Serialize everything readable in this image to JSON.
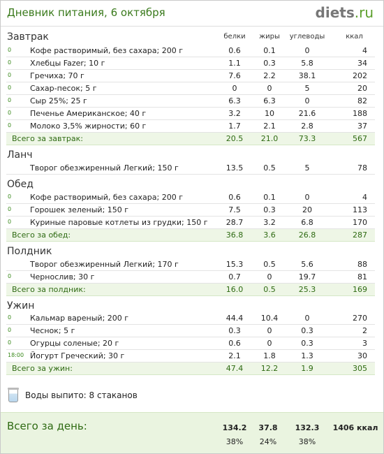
{
  "header": {
    "title": "Дневник питания, 6 октября",
    "logo_main": "diets",
    "logo_tld": ".ru"
  },
  "columns": {
    "protein": "белки",
    "fat": "жиры",
    "carbs": "углеводы",
    "kcal": "ккал"
  },
  "sections": {
    "breakfast": {
      "title": "Завтрак",
      "items": [
        {
          "time": "0",
          "name": "Кофе растворимый, без сахара; 200 г",
          "protein": "0.6",
          "fat": "0.1",
          "carbs": "0",
          "kcal": "4"
        },
        {
          "time": "0",
          "name": "Хлебцы Fazer; 10 г",
          "protein": "1.1",
          "fat": "0.3",
          "carbs": "5.8",
          "kcal": "34"
        },
        {
          "time": "0",
          "name": "Гречиха; 70 г",
          "protein": "7.6",
          "fat": "2.2",
          "carbs": "38.1",
          "kcal": "202"
        },
        {
          "time": "0",
          "name": "Сахар-песок; 5 г",
          "protein": "0",
          "fat": "0",
          "carbs": "5",
          "kcal": "20"
        },
        {
          "time": "0",
          "name": "Сыр 25%; 25 г",
          "protein": "6.3",
          "fat": "6.3",
          "carbs": "0",
          "kcal": "82"
        },
        {
          "time": "0",
          "name": "Печенье Американское; 40 г",
          "protein": "3.2",
          "fat": "10",
          "carbs": "21.6",
          "kcal": "188"
        },
        {
          "time": "0",
          "name": "Молоко 3,5% жирности; 60 г",
          "protein": "1.7",
          "fat": "2.1",
          "carbs": "2.8",
          "kcal": "37"
        }
      ],
      "total": {
        "label": "Всего за завтрак:",
        "protein": "20.5",
        "fat": "21.0",
        "carbs": "73.3",
        "kcal": "567"
      }
    },
    "lunch": {
      "title": "Ланч",
      "items": [
        {
          "time": "",
          "name": "Творог обезжиренный Легкий; 150 г",
          "protein": "13.5",
          "fat": "0.5",
          "carbs": "5",
          "kcal": "78"
        }
      ]
    },
    "dinner": {
      "title": "Обед",
      "items": [
        {
          "time": "0",
          "name": "Кофе растворимый, без сахара; 200 г",
          "protein": "0.6",
          "fat": "0.1",
          "carbs": "0",
          "kcal": "4"
        },
        {
          "time": "0",
          "name": "Горошек зеленый; 150 г",
          "protein": "7.5",
          "fat": "0.3",
          "carbs": "20",
          "kcal": "113"
        },
        {
          "time": "0",
          "name": "Куриные паровые котлеты из грудки; 150 г",
          "protein": "28.7",
          "fat": "3.2",
          "carbs": "6.8",
          "kcal": "170"
        }
      ],
      "total": {
        "label": "Всего за обед:",
        "protein": "36.8",
        "fat": "3.6",
        "carbs": "26.8",
        "kcal": "287"
      }
    },
    "snack": {
      "title": "Полдник",
      "items": [
        {
          "time": "",
          "name": "Творог обезжиренный Легкий; 170 г",
          "protein": "15.3",
          "fat": "0.5",
          "carbs": "5.6",
          "kcal": "88"
        },
        {
          "time": "0",
          "name": "Чернослив; 30 г",
          "protein": "0.7",
          "fat": "0",
          "carbs": "19.7",
          "kcal": "81"
        }
      ],
      "total": {
        "label": "Всего за полдник:",
        "protein": "16.0",
        "fat": "0.5",
        "carbs": "25.3",
        "kcal": "169"
      }
    },
    "supper": {
      "title": "Ужин",
      "items": [
        {
          "time": "0",
          "name": "Кальмар вареный; 200 г",
          "protein": "44.4",
          "fat": "10.4",
          "carbs": "0",
          "kcal": "270"
        },
        {
          "time": "0",
          "name": "Чеснок; 5 г",
          "protein": "0.3",
          "fat": "0",
          "carbs": "0.3",
          "kcal": "2"
        },
        {
          "time": "0",
          "name": "Огурцы соленые; 20 г",
          "protein": "0.6",
          "fat": "0",
          "carbs": "0.3",
          "kcal": "3"
        },
        {
          "time": "18:00",
          "name": "Йогурт Греческий; 30 г",
          "protein": "2.1",
          "fat": "1.8",
          "carbs": "1.3",
          "kcal": "30"
        }
      ],
      "total": {
        "label": "Всего за ужин:",
        "protein": "47.4",
        "fat": "12.2",
        "carbs": "1.9",
        "kcal": "305"
      }
    }
  },
  "water": {
    "text": "Воды выпито: 8 стаканов",
    "icon": "water-glass-icon"
  },
  "day": {
    "label": "Всего за день:",
    "protein": "134.2",
    "fat": "37.8",
    "carbs": "132.3",
    "kcal": "1406 ккал",
    "protein_pct": "38%",
    "fat_pct": "24%",
    "carbs_pct": "38%"
  }
}
